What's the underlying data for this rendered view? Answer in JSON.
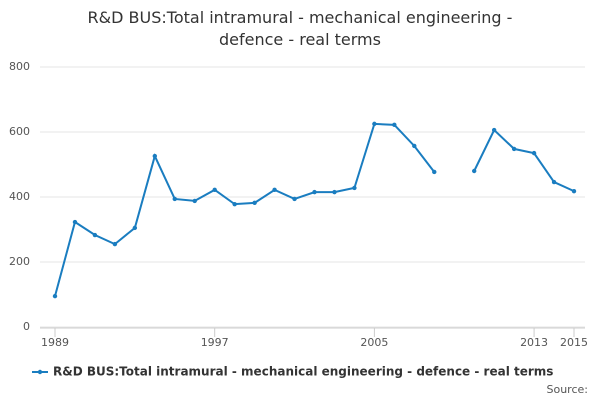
{
  "chart_data": {
    "type": "line",
    "title": "R&D BUS:Total intramural - mechanical engineering - defence - real terms",
    "x": [
      1989,
      1990,
      1991,
      1992,
      1993,
      1994,
      1995,
      1996,
      1997,
      1998,
      1999,
      2000,
      2001,
      2002,
      2003,
      2004,
      2005,
      2006,
      2007,
      2008,
      2009,
      2010,
      2011,
      2012,
      2013,
      2014,
      2015
    ],
    "series": [
      {
        "name": "R&D BUS:Total intramural - mechanical engineering - defence - real terms",
        "color": "#1a7dc0",
        "values": [
          95,
          323,
          283,
          255,
          305,
          526,
          394,
          388,
          422,
          378,
          382,
          422,
          394,
          415,
          415,
          428,
          625,
          622,
          557,
          477,
          null,
          480,
          606,
          548,
          535,
          446,
          418
        ]
      }
    ],
    "xlim": [
      1989,
      2015
    ],
    "xticks": [
      1989,
      1997,
      2005,
      2013,
      2015
    ],
    "ylim": [
      0,
      800
    ],
    "yticks": [
      0,
      200,
      400,
      600,
      800
    ],
    "grid": true,
    "legend": "bottom",
    "source": "Source:"
  }
}
